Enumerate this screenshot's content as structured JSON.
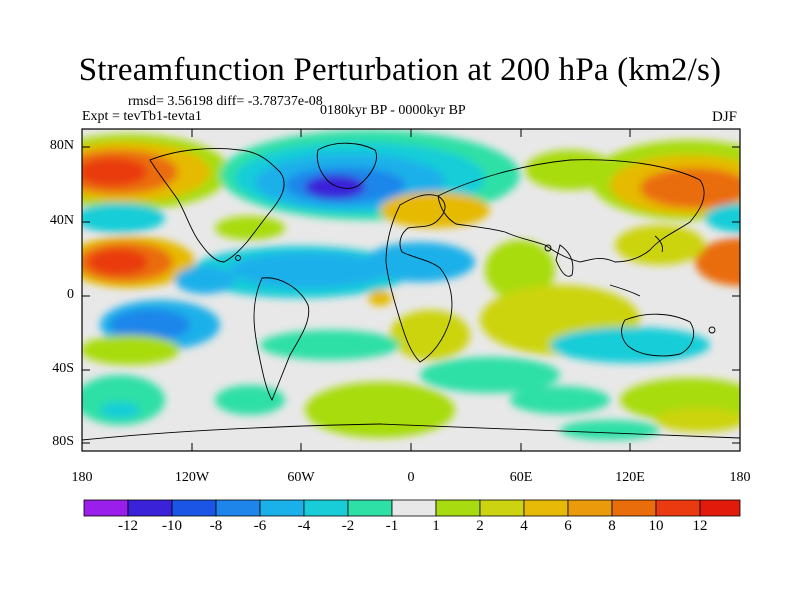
{
  "header": {
    "title": "Streamfunction Perturbation at 200 hPa (km2/s)",
    "stats": "rmsd= 3.56198 diff= -3.78737e-08",
    "experiment": "Expt = tevTb1-tevta1",
    "period": "0180kyr BP - 0000kyr BP",
    "season": "DJF"
  },
  "axes": {
    "y_labels": [
      "80N",
      "40N",
      "0",
      "40S",
      "80S"
    ],
    "x_labels": [
      "180",
      "120W",
      "60W",
      "0",
      "60E",
      "120E",
      "180"
    ]
  },
  "colorbar": {
    "labels": [
      "-12",
      "-10",
      "-8",
      "-6",
      "-4",
      "-2",
      "-1",
      "1",
      "2",
      "4",
      "6",
      "8",
      "10",
      "12"
    ],
    "colors": [
      "#9b1fea",
      "#3a22d8",
      "#1a55e6",
      "#1e86ea",
      "#1ab0ea",
      "#19cdd8",
      "#2fe0a6",
      "#e8e8e8",
      "#a9dc10",
      "#ccd411",
      "#e6ba06",
      "#ea9a0a",
      "#ea6d0c",
      "#ea3a10",
      "#e21a0c"
    ]
  }
}
